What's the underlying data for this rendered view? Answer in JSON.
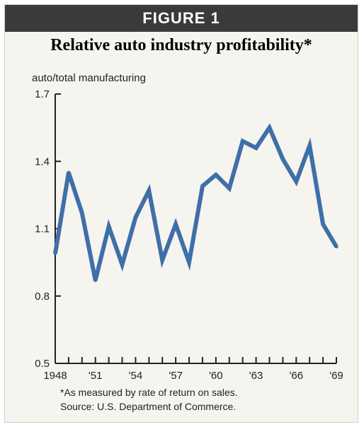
{
  "header": {
    "label": "FIGURE 1"
  },
  "chart_data": {
    "type": "line",
    "title": "Relative auto industry profitability*",
    "ylabel": "auto/total manufacturing",
    "xlabel": "",
    "ylim": [
      0.5,
      1.7
    ],
    "yticks": [
      "1.7",
      "1.4",
      "1.1",
      "0.8",
      "0.5"
    ],
    "xlim": [
      1948,
      1969
    ],
    "xticks": [
      {
        "year": 1948,
        "label": "1948"
      },
      {
        "year": 1951,
        "label": "'51"
      },
      {
        "year": 1954,
        "label": "'54"
      },
      {
        "year": 1957,
        "label": "'57"
      },
      {
        "year": 1960,
        "label": "'60"
      },
      {
        "year": 1963,
        "label": "'63"
      },
      {
        "year": 1966,
        "label": "'66"
      },
      {
        "year": 1969,
        "label": "'69"
      }
    ],
    "x": [
      1948,
      1949,
      1950,
      1951,
      1952,
      1953,
      1954,
      1955,
      1956,
      1957,
      1958,
      1959,
      1960,
      1961,
      1962,
      1963,
      1964,
      1965,
      1966,
      1967,
      1968,
      1969
    ],
    "series": [
      {
        "values": [
          0.99,
          1.35,
          1.17,
          0.87,
          1.11,
          0.94,
          1.15,
          1.27,
          0.96,
          1.12,
          0.95,
          1.29,
          1.34,
          1.28,
          1.49,
          1.46,
          1.55,
          1.41,
          1.31,
          1.47,
          1.12,
          1.02
        ]
      }
    ],
    "line_color": "#3f6fa8",
    "grid": false
  },
  "footnotes": {
    "note": "*As measured by rate of return on sales.",
    "source": "Source: U.S. Department of Commerce."
  }
}
